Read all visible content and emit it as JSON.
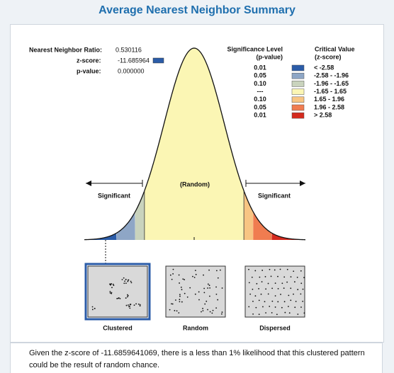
{
  "title": "Average Nearest Neighbor Summary",
  "stats": [
    {
      "label": "Nearest Neighbor Ratio:",
      "value": "0.530116"
    },
    {
      "label": "z-score:",
      "value": "-11.685964"
    },
    {
      "label": "p-value:",
      "value": "0.000000"
    }
  ],
  "legend": {
    "level_header": [
      "Significance Level",
      "(p-value)"
    ],
    "value_header": [
      "Critical Value",
      "(z-score)"
    ],
    "rows": [
      {
        "level": "0.01",
        "range": "< -2.58",
        "color": "#2b5ca8"
      },
      {
        "level": "0.05",
        "range": "-2.58 - -1.96",
        "color": "#8ea6c6"
      },
      {
        "level": "0.10",
        "range": "-1.96 - -1.65",
        "color": "#c9d3bd"
      },
      {
        "level": "---",
        "range": "-1.65 - 1.65",
        "color": "#fbf6b4"
      },
      {
        "level": "0.10",
        "range": "1.65 - 1.96",
        "color": "#f8c583"
      },
      {
        "level": "0.05",
        "range": "1.96 - 2.58",
        "color": "#f07c50"
      },
      {
        "level": "0.01",
        "range": "> 2.58",
        "color": "#d42a1e"
      }
    ]
  },
  "curve": {
    "left_label": "Significant",
    "center_label": "(Random)",
    "right_label": "Significant"
  },
  "patterns": [
    "Clustered",
    "Random",
    "Dispersed"
  ],
  "description": "Given the z-score of -11.6859641069, there is a less than 1% likelihood that this clustered pattern could be the result of random chance."
}
